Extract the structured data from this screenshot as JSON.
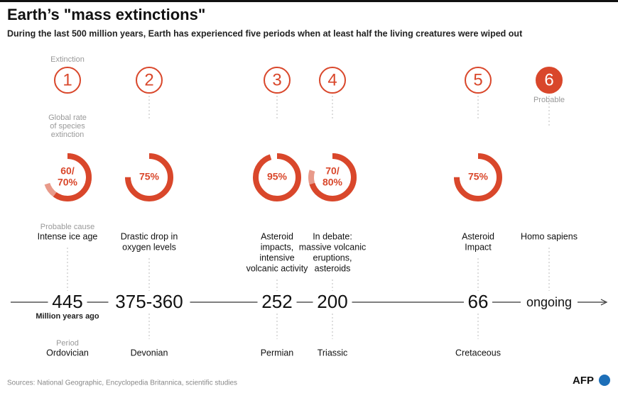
{
  "title": "Earth’s \"mass extinctions\"",
  "subtitle": "During the last 500 million years, Earth has experienced five periods when at least half the living creatures were wiped out",
  "labels": {
    "extinction": "Extinction",
    "rate": [
      "Global rate",
      "of species",
      "extinction"
    ],
    "cause": "Probable cause",
    "unit": "Million years ago",
    "period": "Period",
    "probable": "Probable"
  },
  "extinctions": [
    {
      "number": 1,
      "rate": [
        60,
        70
      ],
      "rate_label": [
        "60/",
        "70%"
      ],
      "cause": [
        "Intense ice age"
      ],
      "date": "445",
      "period": "Ordovician"
    },
    {
      "number": 2,
      "rate": [
        75
      ],
      "rate_label": [
        "75%"
      ],
      "cause": [
        "Drastic drop in",
        "oxygen levels"
      ],
      "date": "375-360",
      "period": "Devonian"
    },
    {
      "number": 3,
      "rate": [
        95
      ],
      "rate_label": [
        "95%"
      ],
      "cause": [
        "Asteroid",
        "impacts,",
        "intensive",
        "volcanic activity"
      ],
      "date": "252",
      "period": "Permian"
    },
    {
      "number": 4,
      "rate": [
        70,
        80
      ],
      "rate_label": [
        "70/",
        "80%"
      ],
      "cause": [
        "In debate:",
        "massive volcanic",
        "eruptions,",
        "asteroids"
      ],
      "date": "200",
      "period": "Triassic"
    },
    {
      "number": 5,
      "rate": [
        75
      ],
      "rate_label": [
        "75%"
      ],
      "cause": [
        "Asteroid",
        "Impact"
      ],
      "date": "66",
      "period": "Cretaceous"
    },
    {
      "number": 6,
      "rate": [],
      "rate_label": [],
      "cause": [
        "Homo sapiens"
      ],
      "date": "ongoing",
      "period": null
    }
  ],
  "sources": "Sources: National Geographic, Encyclopedia Britannica, scientific studies",
  "logo": "AFP"
}
